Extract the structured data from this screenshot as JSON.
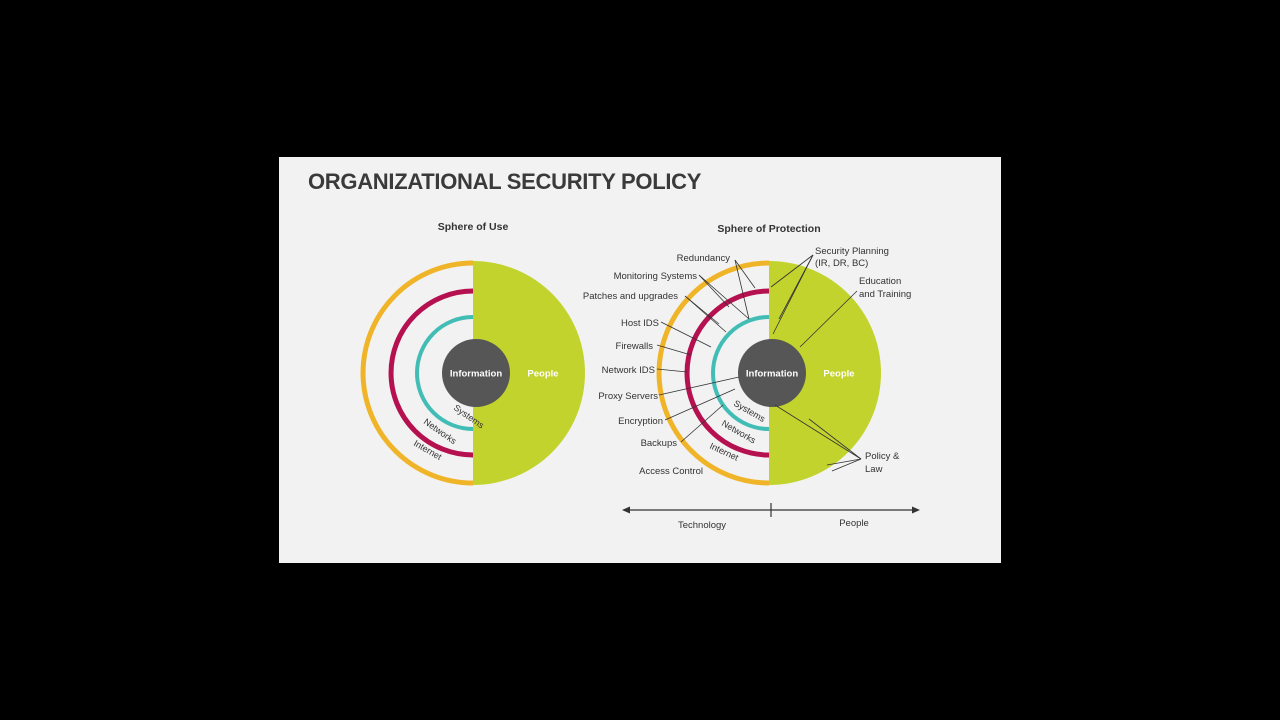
{
  "title": "ORGANIZATIONAL SECURITY POLICY",
  "colors": {
    "people": "#c2d32d",
    "internet_ring": "#f0b429",
    "networks_ring": "#b5104f",
    "systems_ring": "#42bdb5",
    "information": "#565656",
    "background": "#f2f2f2"
  },
  "sphere_of_use": {
    "heading": "Sphere of Use",
    "information": "Information",
    "people": "People",
    "systems": "Systems",
    "networks": "Networks",
    "internet": "Internet"
  },
  "sphere_of_protection": {
    "heading": "Sphere of Protection",
    "information": "Information",
    "people": "People",
    "systems": "Systems",
    "networks": "Networks",
    "internet": "Internet",
    "technology_labels": [
      "Redundancy",
      "Monitoring Systems",
      "Patches and upgrades",
      "Host IDS",
      "Firewalls",
      "Network IDS",
      "Proxy Servers",
      "Encryption",
      "Backups",
      "Access Control"
    ],
    "people_labels": {
      "security_planning": [
        "Security Planning",
        "(IR, DR, BC)"
      ],
      "education": [
        "Education",
        "and Training"
      ],
      "policy": [
        "Policy &",
        "Law"
      ]
    },
    "axis": {
      "left": "Technology",
      "right": "People"
    }
  }
}
